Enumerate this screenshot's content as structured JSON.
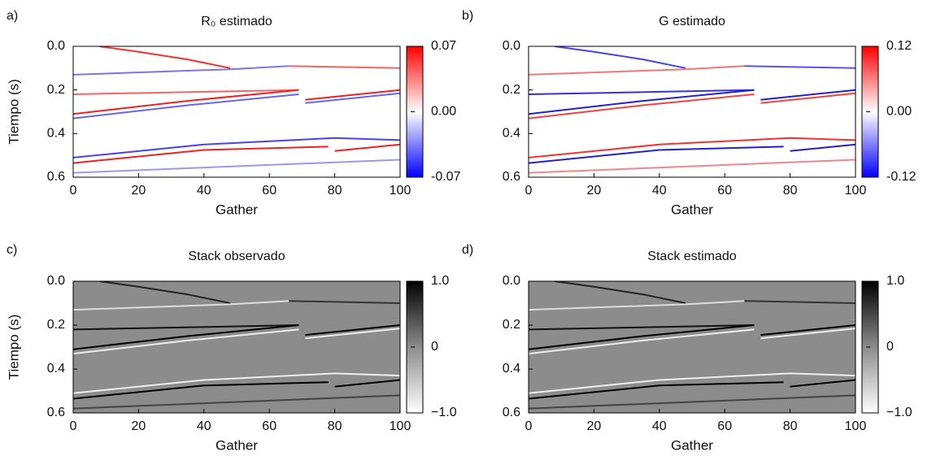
{
  "chart_data": [
    {
      "type": "heatmap",
      "label": "a)",
      "title": "R₀ estimado",
      "xlabel": "Gather",
      "ylabel": "Tiempo (s)",
      "xlim": [
        0,
        100
      ],
      "xticks": [
        0,
        20,
        40,
        60,
        80,
        100
      ],
      "ylim": [
        0,
        0.6
      ],
      "y_inverted": true,
      "yticks": [
        {
          "value": 0,
          "label": "0.0"
        },
        0.2,
        0.4,
        0.6
      ],
      "background": "#ffffff",
      "colormap": [
        "#0000ff",
        "#ffffff",
        "#ff0000"
      ],
      "clim": [
        -0.07,
        0.07
      ],
      "cticks": [
        -0.07,
        {
          "value": 0,
          "label": "0.00"
        },
        0.07
      ],
      "series": [
        {
          "color": "#ee3333",
          "x": [
            8,
            20,
            35,
            48
          ],
          "values": [
            0,
            0.025,
            0.06,
            0.1
          ]
        },
        {
          "color": "#7777ee",
          "x": [
            0,
            48,
            66
          ],
          "values": [
            0.13,
            0.105,
            0.09
          ]
        },
        {
          "color": "#ee6666",
          "x": [
            0,
            69
          ],
          "values": [
            0.22,
            0.2
          ]
        },
        {
          "color": "#ee2222",
          "x": [
            0,
            35,
            69,
            null,
            71,
            100
          ],
          "values": [
            0.31,
            0.25,
            0.2,
            null,
            0.245,
            0.2
          ]
        },
        {
          "color": "#6666ee",
          "x": [
            0,
            35,
            69,
            null,
            71,
            100
          ],
          "values": [
            0.33,
            0.27,
            0.22,
            null,
            0.26,
            0.215
          ]
        },
        {
          "color": "#ee6666",
          "x": [
            66,
            100
          ],
          "values": [
            0.09,
            0.1
          ]
        },
        {
          "color": "#4444ee",
          "x": [
            0,
            40,
            80,
            100
          ],
          "values": [
            0.51,
            0.45,
            0.42,
            0.43
          ]
        },
        {
          "color": "#ee2222",
          "x": [
            0,
            40,
            78,
            null,
            80,
            100
          ],
          "values": [
            0.535,
            0.475,
            0.46,
            null,
            0.48,
            0.45
          ]
        },
        {
          "color": "#9999ee",
          "x": [
            0,
            100
          ],
          "values": [
            0.58,
            0.52
          ]
        }
      ]
    },
    {
      "type": "heatmap",
      "label": "b)",
      "title": "G estimado",
      "xlabel": "Gather",
      "ylabel": null,
      "xlim": [
        0,
        100
      ],
      "xticks": [
        0,
        20,
        40,
        60,
        80,
        100
      ],
      "ylim": [
        0,
        0.6
      ],
      "y_inverted": true,
      "yticks": [
        {
          "value": 0,
          "label": "0.0"
        },
        0.2,
        0.4,
        0.6
      ],
      "background": "#ffffff",
      "colormap": [
        "#0000ff",
        "#ffffff",
        "#ff0000"
      ],
      "clim": [
        -0.12,
        0.12
      ],
      "cticks": [
        -0.12,
        {
          "value": 0,
          "label": "0.00"
        },
        0.12
      ],
      "series": [
        {
          "color": "#4444ee",
          "x": [
            8,
            20,
            35,
            48
          ],
          "values": [
            0,
            0.025,
            0.06,
            0.1
          ]
        },
        {
          "color": "#ee7777",
          "x": [
            0,
            48,
            66
          ],
          "values": [
            0.13,
            0.105,
            0.09
          ]
        },
        {
          "color": "#3333dd",
          "x": [
            0,
            69
          ],
          "values": [
            0.22,
            0.2
          ]
        },
        {
          "color": "#2222cc",
          "x": [
            0,
            35,
            69,
            null,
            71,
            100
          ],
          "values": [
            0.31,
            0.25,
            0.2,
            null,
            0.245,
            0.2
          ]
        },
        {
          "color": "#ee4444",
          "x": [
            0,
            35,
            69,
            null,
            71,
            100
          ],
          "values": [
            0.33,
            0.27,
            0.22,
            null,
            0.26,
            0.215
          ]
        },
        {
          "color": "#5555ee",
          "x": [
            66,
            100
          ],
          "values": [
            0.09,
            0.1
          ]
        },
        {
          "color": "#ee3333",
          "x": [
            0,
            40,
            80,
            100
          ],
          "values": [
            0.51,
            0.45,
            0.42,
            0.43
          ]
        },
        {
          "color": "#2222cc",
          "x": [
            0,
            40,
            78,
            null,
            80,
            100
          ],
          "values": [
            0.535,
            0.475,
            0.46,
            null,
            0.48,
            0.45
          ]
        },
        {
          "color": "#ee8888",
          "x": [
            0,
            100
          ],
          "values": [
            0.58,
            0.52
          ]
        }
      ]
    },
    {
      "type": "heatmap",
      "label": "c)",
      "title": "Stack observado",
      "xlabel": "Gather",
      "ylabel": "Tiempo (s)",
      "xlim": [
        0,
        100
      ],
      "xticks": [
        0,
        20,
        40,
        60,
        80,
        100
      ],
      "ylim": [
        0,
        0.6
      ],
      "y_inverted": true,
      "yticks": [
        {
          "value": 0,
          "label": "0.0"
        },
        0.2,
        0.4,
        0.6
      ],
      "background": "#8c8c8c",
      "colormap": [
        "#ffffff",
        "#8c8c8c",
        "#000000"
      ],
      "clim": [
        -1,
        1
      ],
      "cticks": [
        {
          "value": -1,
          "label": "−1.0"
        },
        0,
        {
          "value": 1,
          "label": "1.0"
        }
      ],
      "series": [
        {
          "color": "#222222",
          "x": [
            8,
            20,
            35,
            48
          ],
          "values": [
            0,
            0.025,
            0.06,
            0.1
          ]
        },
        {
          "color": "#dddddd",
          "x": [
            0,
            48,
            66
          ],
          "values": [
            0.13,
            0.105,
            0.09
          ]
        },
        {
          "color": "#111111",
          "x": [
            0,
            69
          ],
          "values": [
            0.22,
            0.2
          ]
        },
        {
          "color": "#000000",
          "x": [
            0,
            35,
            69,
            null,
            71,
            100
          ],
          "values": [
            0.31,
            0.25,
            0.2,
            null,
            0.245,
            0.2
          ]
        },
        {
          "color": "#eeeeee",
          "x": [
            0,
            35,
            69,
            null,
            71,
            100
          ],
          "values": [
            0.33,
            0.27,
            0.22,
            null,
            0.26,
            0.215
          ]
        },
        {
          "color": "#333333",
          "x": [
            66,
            100
          ],
          "values": [
            0.09,
            0.1
          ]
        },
        {
          "color": "#eeeeee",
          "x": [
            0,
            40,
            80,
            100
          ],
          "values": [
            0.51,
            0.45,
            0.42,
            0.43
          ]
        },
        {
          "color": "#000000",
          "x": [
            0,
            40,
            78,
            null,
            80,
            100
          ],
          "values": [
            0.535,
            0.475,
            0.46,
            null,
            0.48,
            0.45
          ]
        },
        {
          "color": "#444444",
          "x": [
            0,
            100
          ],
          "values": [
            0.58,
            0.52
          ]
        }
      ]
    },
    {
      "type": "heatmap",
      "label": "d)",
      "title": "Stack estimado",
      "xlabel": "Gather",
      "ylabel": null,
      "xlim": [
        0,
        100
      ],
      "xticks": [
        0,
        20,
        40,
        60,
        80,
        100
      ],
      "ylim": [
        0,
        0.6
      ],
      "y_inverted": true,
      "yticks": [
        {
          "value": 0,
          "label": "0.0"
        },
        0.2,
        0.4,
        0.6
      ],
      "background": "#8c8c8c",
      "colormap": [
        "#ffffff",
        "#8c8c8c",
        "#000000"
      ],
      "clim": [
        -1,
        1
      ],
      "cticks": [
        {
          "value": -1,
          "label": "−1.0"
        },
        0,
        {
          "value": 1,
          "label": "1.0"
        }
      ],
      "series": [
        {
          "color": "#222222",
          "x": [
            8,
            20,
            35,
            48
          ],
          "values": [
            0,
            0.025,
            0.06,
            0.1
          ]
        },
        {
          "color": "#dddddd",
          "x": [
            0,
            48,
            66
          ],
          "values": [
            0.13,
            0.105,
            0.09
          ]
        },
        {
          "color": "#111111",
          "x": [
            0,
            69
          ],
          "values": [
            0.22,
            0.2
          ]
        },
        {
          "color": "#000000",
          "x": [
            0,
            35,
            69,
            null,
            71,
            100
          ],
          "values": [
            0.31,
            0.25,
            0.2,
            null,
            0.245,
            0.2
          ]
        },
        {
          "color": "#eeeeee",
          "x": [
            0,
            35,
            69,
            null,
            71,
            100
          ],
          "values": [
            0.33,
            0.27,
            0.22,
            null,
            0.26,
            0.215
          ]
        },
        {
          "color": "#333333",
          "x": [
            66,
            100
          ],
          "values": [
            0.09,
            0.1
          ]
        },
        {
          "color": "#eeeeee",
          "x": [
            0,
            40,
            80,
            100
          ],
          "values": [
            0.51,
            0.45,
            0.42,
            0.43
          ]
        },
        {
          "color": "#000000",
          "x": [
            0,
            40,
            78,
            null,
            80,
            100
          ],
          "values": [
            0.535,
            0.475,
            0.46,
            null,
            0.48,
            0.45
          ]
        },
        {
          "color": "#444444",
          "x": [
            0,
            100
          ],
          "values": [
            0.58,
            0.52
          ]
        }
      ]
    }
  ]
}
